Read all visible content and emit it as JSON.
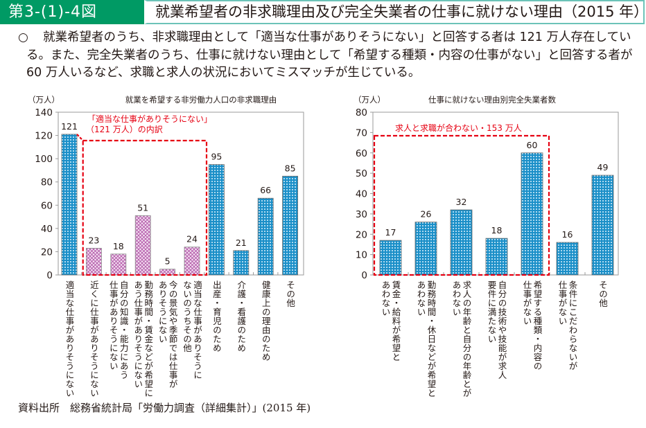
{
  "header": {
    "figure_number": "第3-(1)-4図",
    "title": "就業希望者の非求職理由及び完全失業者の仕事に就けない理由（2015 年）"
  },
  "summary": {
    "bullet": "○",
    "text": "就業希望者のうち、非求職理由として「適当な仕事がありそうにない」と回答する者は 121 万人存在している。また、完全失業者のうち、仕事に就けない理由として「希望する種類・内容の仕事がない」と回答する者が 60 万人いるなど、求職と求人の状況においてミスマッチが生じている。"
  },
  "source": "資料出所　総務省統計局「労働力調査（詳細集計）」(2015 年)",
  "colors": {
    "header_green": "#009a64",
    "header_border": "#6cc3b8",
    "bar_blue": "#1b8fc8",
    "bar_pink": "#c96fc0",
    "highlight_red": "#e60012"
  },
  "chart_data": [
    {
      "type": "bar",
      "title": "就業を希望する非労働力人口の非求職理由",
      "ylabel": "（万人）",
      "xlabel": "",
      "ylim": [
        0,
        140
      ],
      "yticks": [
        0,
        20,
        40,
        60,
        80,
        100,
        120,
        140
      ],
      "grid": false,
      "categories": [
        "適当な仕事がありそうにない",
        "近くに仕事がありそうにない",
        "自分の知識・能力にあう仕事がありそうにない",
        "勤務時間・賃金などが希望にあう仕事がありそうにない",
        "今の景気や季節では仕事がありそうにない",
        "適当な仕事がありそうにないのうちその他",
        "出産・育児のため",
        "介護・看護のため",
        "健康上の理由のため",
        "その他"
      ],
      "category_lines": [
        [
          "適当な仕事がありそうにない"
        ],
        [
          "近くに仕事がありそうにない"
        ],
        [
          "自分の知識・能力にあう",
          "仕事がありそうにない"
        ],
        [
          "勤務時間・賃金などが希望に",
          "あう仕事がありそうにない"
        ],
        [
          "今の景気や季節では仕事が",
          "ありそうにない"
        ],
        [
          "適当な仕事がありそうに",
          "ないのうちその他"
        ],
        [
          "出産・育児のため"
        ],
        [
          "介護・看護のため"
        ],
        [
          "健康上の理由のため"
        ],
        [
          "その他"
        ]
      ],
      "values": [
        121,
        23,
        18,
        51,
        5,
        24,
        95,
        21,
        66,
        85
      ],
      "bar_style": [
        "blue",
        "pink",
        "pink",
        "pink",
        "pink",
        "pink",
        "blue",
        "blue",
        "blue",
        "blue"
      ],
      "annotation": {
        "lines": [
          "「適当な仕事がありそうにない」",
          "（121 万人）の内訳"
        ],
        "covers_categories": [
          1,
          5
        ]
      }
    },
    {
      "type": "bar",
      "title": "仕事に就けない理由別完全失業者数",
      "ylabel": "（万人）",
      "xlabel": "",
      "ylim": [
        0,
        80
      ],
      "yticks": [
        0,
        10,
        20,
        30,
        40,
        50,
        60,
        70,
        80
      ],
      "grid": false,
      "categories": [
        "賃金・給料が希望とあわない",
        "勤務時間・休日などが希望とあわない",
        "求人の年齢と自分の年齢とがあわない",
        "自分の技術や技能が求人要件に満たない",
        "希望する種類・内容の仕事がない",
        "条件にこだわらないが仕事がない",
        "その他"
      ],
      "category_lines": [
        [
          "賃金・給料が希望と",
          "あわない"
        ],
        [
          "勤務時間・休日などが希望と",
          "あわない"
        ],
        [
          "求人の年齢と自分の年齢とが",
          "あわない"
        ],
        [
          "自分の技術や技能が求人",
          "要件に満たない"
        ],
        [
          "希望する種類・内容の",
          "仕事がない"
        ],
        [
          "条件にこだわらないが",
          "仕事がない"
        ],
        [
          "その他"
        ]
      ],
      "values": [
        17,
        26,
        32,
        18,
        60,
        16,
        49
      ],
      "bar_style": [
        "blue",
        "blue",
        "blue",
        "blue",
        "blue",
        "blue",
        "blue"
      ],
      "annotation": {
        "lines": [
          "求人と求職が合わない・153 万人"
        ],
        "covers_categories": [
          0,
          4
        ]
      }
    }
  ]
}
